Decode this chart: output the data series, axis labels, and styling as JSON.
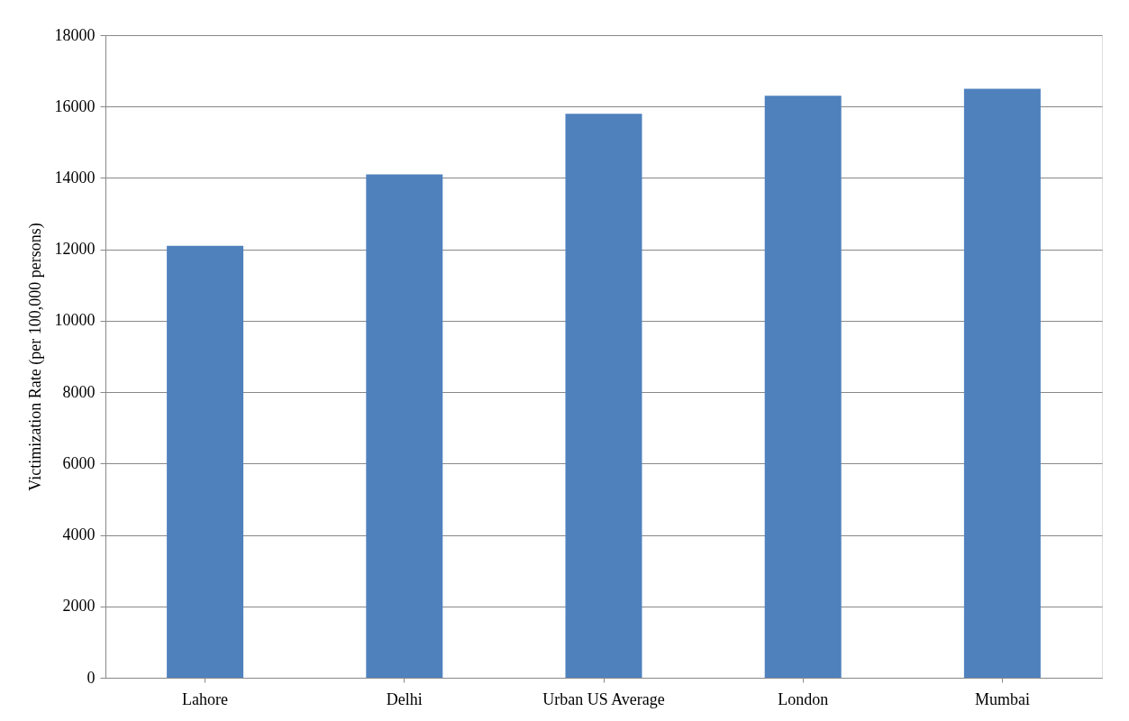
{
  "chart_data": {
    "type": "bar",
    "ylabel": "Victimization Rate (per 100,000 persons)",
    "categories": [
      "Lahore",
      "Delhi",
      "Urban US Average",
      "London",
      "Mumbai"
    ],
    "values": [
      12100,
      14100,
      15800,
      16300,
      16500
    ],
    "color": "#4f81bd",
    "ylim": [
      0,
      18000
    ],
    "yticks": [
      0,
      2000,
      4000,
      6000,
      8000,
      10000,
      12000,
      14000,
      16000,
      18000
    ],
    "grid": "y"
  }
}
